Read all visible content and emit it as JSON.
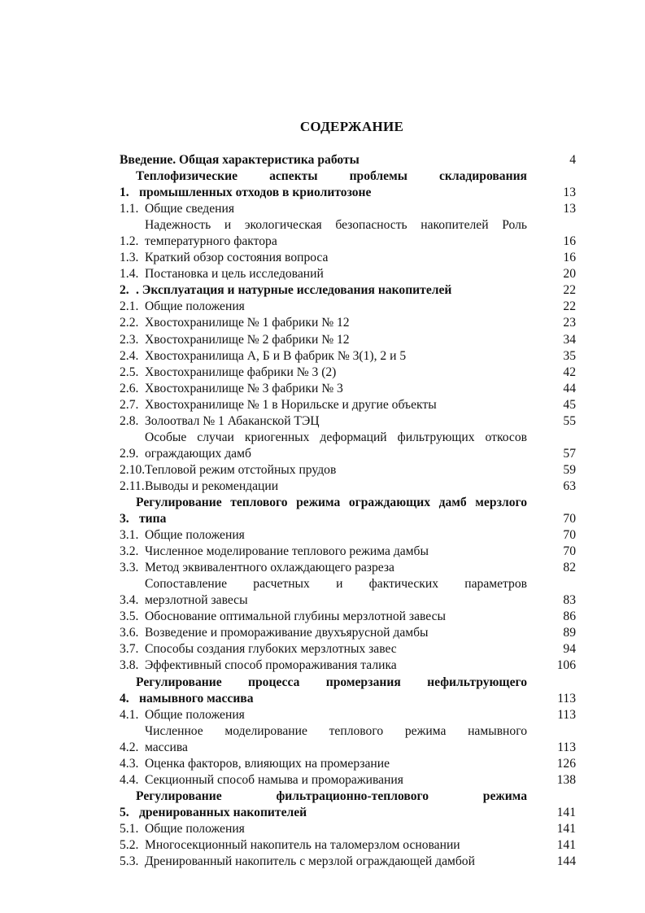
{
  "title": "СОДЕРЖАНИЕ",
  "entries": [
    {
      "num": "",
      "lines": [
        "Введение. Общая характеристика работы"
      ],
      "page": "4",
      "bold": true
    },
    {
      "num": "1.",
      "lines": [
        "Теплофизические аспекты проблемы складирования",
        "промышленных отходов в криолитозоне"
      ],
      "page": "13",
      "bold": true
    },
    {
      "num": "1.1.",
      "lines": [
        "Общие сведения"
      ],
      "page": "13"
    },
    {
      "num": "1.2.",
      "lines": [
        "Надежность и экологическая безопасность накопителей Роль",
        "температурного фактора"
      ],
      "page": "16"
    },
    {
      "num": "1.3.",
      "lines": [
        "Краткий обзор состояния вопроса"
      ],
      "page": "16"
    },
    {
      "num": "1.4.",
      "lines": [
        "Постановка и цель исследований"
      ],
      "page": "20"
    },
    {
      "num": "2.",
      "lines": [
        ". Эксплуатация и натурные исследования накопителей"
      ],
      "page": "22",
      "bold": true
    },
    {
      "num": "2.1.",
      "lines": [
        "Общие положения"
      ],
      "page": "22"
    },
    {
      "num": "2.2.",
      "lines": [
        "Хвостохранилище № 1 фабрики № 12"
      ],
      "page": "23"
    },
    {
      "num": "2.3.",
      "lines": [
        "Хвостохранилище № 2 фабрики № 12"
      ],
      "page": "34"
    },
    {
      "num": "2.4.",
      "lines": [
        "Хвостохранилища А, Б и В фабрик № 3(1), 2 и 5"
      ],
      "page": "35"
    },
    {
      "num": "2.5.",
      "lines": [
        "Хвостохранилище фабрики № 3 (2)"
      ],
      "page": "42"
    },
    {
      "num": "2.6.",
      "lines": [
        "Хвостохранилище № 3 фабрики № 3"
      ],
      "page": "44"
    },
    {
      "num": "2.7.",
      "lines": [
        "Хвостохранилище № 1 в Норильске и другие объекты"
      ],
      "page": "45"
    },
    {
      "num": "2.8.",
      "lines": [
        "Золоотвал № 1 Абаканской ТЭЦ"
      ],
      "page": "55"
    },
    {
      "num": "2.9.",
      "lines": [
        "Особые случаи криогенных деформаций фильтрующих откосов",
        "ограждающих дамб"
      ],
      "page": "57"
    },
    {
      "num": "2.10.",
      "lines": [
        "Тепловой режим отстойных прудов"
      ],
      "page": "59"
    },
    {
      "num": "2.11.",
      "lines": [
        "Выводы и рекомендации"
      ],
      "page": "63"
    },
    {
      "num": "3.",
      "lines": [
        "Регулирование теплового режима ограждающих дамб мерзлого",
        "типа"
      ],
      "page": "70",
      "bold": true
    },
    {
      "num": "3.1.",
      "lines": [
        "Общие положения"
      ],
      "page": "70"
    },
    {
      "num": "3.2.",
      "lines": [
        "Численное моделирование теплового режима дамбы"
      ],
      "page": "70"
    },
    {
      "num": "3.3.",
      "lines": [
        "Метод эквивалентного охлаждающего разреза"
      ],
      "page": "82"
    },
    {
      "num": "3.4.",
      "lines": [
        "Сопоставление расчетных и фактических параметров",
        "мерзлотной завесы"
      ],
      "page": "83"
    },
    {
      "num": "3.5.",
      "lines": [
        "Обоснование оптимальной глубины мерзлотной завесы"
      ],
      "page": "86"
    },
    {
      "num": "3.6.",
      "lines": [
        "Возведение и промораживание двухъярусной дамбы"
      ],
      "page": "89"
    },
    {
      "num": "3.7.",
      "lines": [
        "Способы создания глубоких мерзлотных завес"
      ],
      "page": "94"
    },
    {
      "num": "3.8.",
      "lines": [
        "Эффективный способ  промораживания талика"
      ],
      "page": "106"
    },
    {
      "num": "4.",
      "lines": [
        "Регулирование процесса промерзания нефильтрующего",
        "намывного массива"
      ],
      "page": "113",
      "bold": true
    },
    {
      "num": "4.1.",
      "lines": [
        "Общие положения"
      ],
      "page": "113"
    },
    {
      "num": "4.2.",
      "lines": [
        "Численное моделирование теплового режима намывного",
        "массива"
      ],
      "page": "113"
    },
    {
      "num": "4.3.",
      "lines": [
        "Оценка факторов, влияющих на промерзание"
      ],
      "page": "126"
    },
    {
      "num": "4.4.",
      "lines": [
        "Секционный способ намыва и промораживания"
      ],
      "page": "138"
    },
    {
      "num": "5.",
      "lines": [
        "Регулирование фильтрационно-теплового режима",
        "дренированных накопителей"
      ],
      "page": "141",
      "bold": true
    },
    {
      "num": "5.1.",
      "lines": [
        "Общие положения"
      ],
      "page": "141"
    },
    {
      "num": "5.2.",
      "lines": [
        "Многосекционный накопитель на таломерзлом основании"
      ],
      "page": "141"
    },
    {
      "num": "5.3.",
      "lines": [
        "Дренированный накопитель с мерзлой ограждающей дамбой"
      ],
      "page": "144"
    }
  ]
}
